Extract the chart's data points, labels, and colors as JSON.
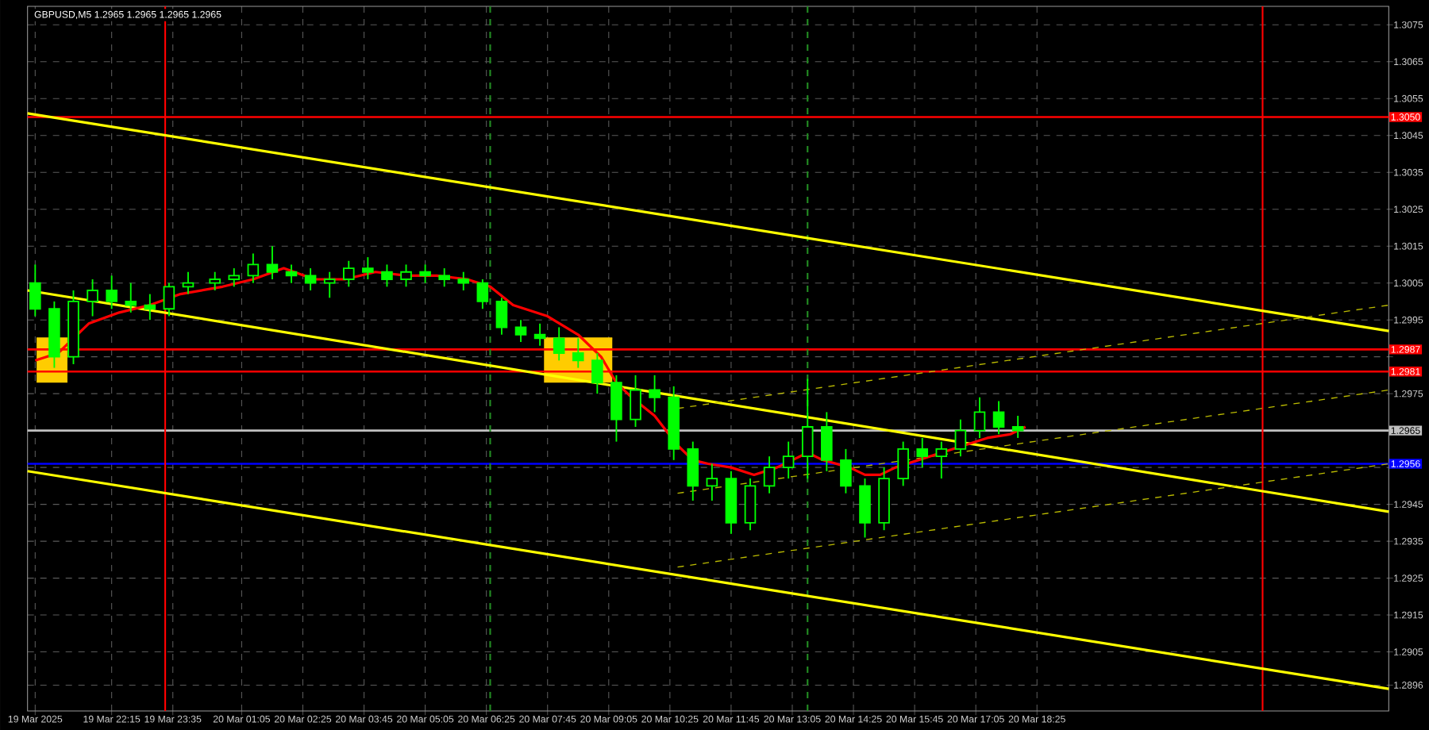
{
  "chart_data": {
    "type": "candlestick",
    "title": "GBPUSD,M5  1.2965 1.2965 1.2965 1.2965",
    "xlim": [
      "2025-03-19T20:25",
      "2025-03-21T02:05"
    ],
    "ylim": [
      1.2889,
      1.308
    ],
    "xticks": [
      {
        "value": "2025-03-19T20:35",
        "label": "19 Mar 2025"
      },
      {
        "value": "2025-03-19T22:15",
        "label": "19 Mar 22:15"
      },
      {
        "value": "2025-03-19T23:35",
        "label": "19 Mar 23:35"
      },
      {
        "value": "2025-03-20T01:05",
        "label": "20 Mar 01:05"
      },
      {
        "value": "2025-03-20T02:25",
        "label": "20 Mar 02:25"
      },
      {
        "value": "2025-03-20T03:45",
        "label": "20 Mar 03:45"
      },
      {
        "value": "2025-03-20T05:05",
        "label": "20 Mar 05:05"
      },
      {
        "value": "2025-03-20T06:25",
        "label": "20 Mar 06:25"
      },
      {
        "value": "2025-03-20T07:45",
        "label": "20 Mar 07:45"
      },
      {
        "value": "2025-03-20T09:05",
        "label": "20 Mar 09:05"
      },
      {
        "value": "2025-03-20T10:25",
        "label": "20 Mar 10:25"
      },
      {
        "value": "2025-03-20T11:45",
        "label": "20 Mar 11:45"
      },
      {
        "value": "2025-03-20T13:05",
        "label": "20 Mar 13:05"
      },
      {
        "value": "2025-03-20T14:25",
        "label": "20 Mar 14:25"
      },
      {
        "value": "2025-03-20T15:45",
        "label": "20 Mar 15:45"
      },
      {
        "value": "2025-03-20T17:05",
        "label": "20 Mar 17:05"
      },
      {
        "value": "2025-03-20T18:25",
        "label": "20 Mar 18:25"
      }
    ],
    "yticks": [
      1.2896,
      1.2905,
      1.2915,
      1.2925,
      1.2935,
      1.2945,
      {
        "value": 1.2955,
        "label": null
      },
      {
        "value": 1.2965,
        "label": null
      },
      1.2975,
      {
        "value": 1.2985,
        "label": null
      },
      1.2995,
      1.3005,
      1.3015,
      1.3025,
      1.3035,
      1.3045,
      1.3055,
      1.3065,
      1.3075
    ],
    "grid": true,
    "series": [
      {
        "type": "bar",
        "color": "#ffcc00",
        "x": [
          "2025-03-19T20:57",
          "2025-03-20T08:25"
        ],
        "base": [
          1.2978,
          1.2978
        ],
        "values": [
          0.0012,
          0.0012
        ],
        "xerrors": [
          0.014,
          0.031
        ]
      },
      {
        "type": "line",
        "color": "#ffff00",
        "x": [
          "2025-03-19T20:25",
          "2025-03-21T02:05"
        ],
        "values": [
          1.3051,
          1.2992
        ]
      },
      {
        "type": "line",
        "color": "#ffff00",
        "x": [
          "2025-03-19T20:25",
          "2025-03-21T02:05"
        ],
        "values": [
          1.3003,
          1.2943
        ]
      },
      {
        "type": "line",
        "color": "#ffff00",
        "x": [
          "2025-03-19T20:25",
          "2025-03-21T02:05"
        ],
        "values": [
          1.2954,
          1.2895
        ]
      },
      {
        "type": "line",
        "color": "#bbbb00",
        "line_style": "dashed",
        "x": [
          "2025-03-20T10:35",
          "2025-03-21T02:05"
        ],
        "values": [
          1.2971,
          1.2999
        ]
      },
      {
        "type": "line",
        "color": "#bbbb00",
        "line_style": "dashed",
        "x": [
          "2025-03-20T10:35",
          "2025-03-21T02:05"
        ],
        "values": [
          1.2948,
          1.2976
        ]
      },
      {
        "type": "line",
        "color": "#bbbb00",
        "line_style": "dashed",
        "x": [
          "2025-03-20T10:35",
          "2025-03-21T02:05"
        ],
        "values": [
          1.2928,
          1.2956
        ]
      },
      {
        "type": "line",
        "color": "#ff0000",
        "x": [
          "2025-03-19T20:35",
          "2025-03-19T21:05",
          "2025-03-19T21:45",
          "2025-03-19T22:25",
          "2025-03-19T23:05",
          "2025-03-19T23:45",
          "2025-03-20T00:40",
          "2025-03-20T01:20",
          "2025-03-20T02:00",
          "2025-03-20T02:40",
          "2025-03-20T03:20",
          "2025-03-20T04:00",
          "2025-03-20T04:40",
          "2025-03-20T05:20",
          "2025-03-20T06:00",
          "2025-03-20T06:30",
          "2025-03-20T07:00",
          "2025-03-20T07:45",
          "2025-03-20T08:25",
          "2025-03-20T08:55",
          "2025-03-20T09:15",
          "2025-03-20T09:35",
          "2025-03-20T10:05",
          "2025-03-20T10:35",
          "2025-03-20T10:55",
          "2025-03-20T11:15",
          "2025-03-20T11:45",
          "2025-03-20T12:15",
          "2025-03-20T12:45",
          "2025-03-20T13:05",
          "2025-03-20T13:25",
          "2025-03-20T13:45",
          "2025-03-20T14:20",
          "2025-03-20T14:40",
          "2025-03-20T15:00",
          "2025-03-20T15:20",
          "2025-03-20T15:50",
          "2025-03-20T16:20",
          "2025-03-20T16:50",
          "2025-03-20T17:20",
          "2025-03-20T17:50",
          "2025-03-20T18:10"
        ],
        "values": [
          1.2984,
          1.2986,
          1.2994,
          1.2997,
          1.2999,
          1.3002,
          1.3004,
          1.3006,
          1.3009,
          1.3006,
          1.3006,
          1.3008,
          1.3007,
          1.3007,
          1.3006,
          1.3004,
          1.2999,
          1.2996,
          1.2991,
          1.2985,
          1.2978,
          1.2974,
          1.2969,
          1.2961,
          1.2957,
          1.2956,
          1.2955,
          1.2953,
          1.2955,
          1.2957,
          1.2959,
          1.2957,
          1.2955,
          1.2953,
          1.2953,
          1.2955,
          1.2957,
          1.2959,
          1.2961,
          1.2963,
          1.2964,
          1.2966
        ]
      },
      {
        "color": "#00ff00",
        "x": [
          "2025-03-19T20:35",
          "2025-03-19T21:00",
          "2025-03-19T21:25",
          "2025-03-19T21:50",
          "2025-03-19T22:15",
          "2025-03-19T22:40",
          "2025-03-19T23:05",
          "2025-03-19T23:30",
          "2025-03-19T23:55",
          "2025-03-20T00:30",
          "2025-03-20T00:55",
          "2025-03-20T01:20",
          "2025-03-20T01:45",
          "2025-03-20T02:10",
          "2025-03-20T02:35",
          "2025-03-20T03:00",
          "2025-03-20T03:25",
          "2025-03-20T03:50",
          "2025-03-20T04:15",
          "2025-03-20T04:40",
          "2025-03-20T05:05",
          "2025-03-20T05:30",
          "2025-03-20T05:55",
          "2025-03-20T06:20",
          "2025-03-20T06:45",
          "2025-03-20T07:10",
          "2025-03-20T07:35",
          "2025-03-20T08:00",
          "2025-03-20T08:25",
          "2025-03-20T08:50",
          "2025-03-20T09:15",
          "2025-03-20T09:40",
          "2025-03-20T10:05",
          "2025-03-20T10:30",
          "2025-03-20T10:55",
          "2025-03-20T11:20",
          "2025-03-20T11:45",
          "2025-03-20T12:10",
          "2025-03-20T12:35",
          "2025-03-20T13:00",
          "2025-03-20T13:25",
          "2025-03-20T13:50",
          "2025-03-20T14:15",
          "2025-03-20T14:40",
          "2025-03-20T15:05",
          "2025-03-20T15:30",
          "2025-03-20T15:55",
          "2025-03-20T16:20",
          "2025-03-20T16:45",
          "2025-03-20T17:10",
          "2025-03-20T17:35",
          "2025-03-20T18:00"
        ],
        "ohlc": [
          [
            1.3005,
            1.301,
            1.2996,
            1.2998
          ],
          [
            1.2998,
            1.3,
            1.2982,
            1.2985
          ],
          [
            1.2985,
            1.3003,
            1.2983,
            1.3
          ],
          [
            1.3,
            1.3006,
            1.2996,
            1.3003
          ],
          [
            1.3003,
            1.3007,
            1.2998,
            1.3
          ],
          [
            1.3,
            1.3005,
            1.2997,
            1.2999
          ],
          [
            1.2999,
            1.3002,
            1.2995,
            1.2998
          ],
          [
            1.2998,
            1.3005,
            1.2996,
            1.3004
          ],
          [
            1.3004,
            1.3008,
            1.3002,
            1.3005
          ],
          [
            1.3005,
            1.3008,
            1.3003,
            1.3006
          ],
          [
            1.3006,
            1.3009,
            1.3004,
            1.3007
          ],
          [
            1.3007,
            1.3013,
            1.3005,
            1.301
          ],
          [
            1.301,
            1.3015,
            1.3006,
            1.3008
          ],
          [
            1.3008,
            1.301,
            1.3005,
            1.3007
          ],
          [
            1.3007,
            1.3009,
            1.3003,
            1.3005
          ],
          [
            1.3005,
            1.3008,
            1.3001,
            1.3006
          ],
          [
            1.3006,
            1.3011,
            1.3004,
            1.3009
          ],
          [
            1.3009,
            1.3012,
            1.3006,
            1.3008
          ],
          [
            1.3008,
            1.301,
            1.3004,
            1.3006
          ],
          [
            1.3006,
            1.301,
            1.3004,
            1.3008
          ],
          [
            1.3008,
            1.301,
            1.3005,
            1.3007
          ],
          [
            1.3007,
            1.3009,
            1.3004,
            1.3006
          ],
          [
            1.3006,
            1.3008,
            1.3003,
            1.3005
          ],
          [
            1.3005,
            1.3006,
            1.2998,
            1.3
          ],
          [
            1.3,
            1.3001,
            1.2991,
            1.2993
          ],
          [
            1.2993,
            1.2995,
            1.2989,
            1.2991
          ],
          [
            1.2991,
            1.2994,
            1.2988,
            1.299
          ],
          [
            1.299,
            1.2993,
            1.2984,
            1.2986
          ],
          [
            1.2986,
            1.299,
            1.2982,
            1.2984
          ],
          [
            1.2984,
            1.2986,
            1.2975,
            1.2978
          ],
          [
            1.2978,
            1.298,
            1.2962,
            1.2968
          ],
          [
            1.2968,
            1.298,
            1.2966,
            1.2976
          ],
          [
            1.2976,
            1.298,
            1.297,
            1.2974
          ],
          [
            1.2974,
            1.2977,
            1.2957,
            1.296
          ],
          [
            1.296,
            1.2962,
            1.2946,
            1.295
          ],
          [
            1.295,
            1.2956,
            1.2946,
            1.2952
          ],
          [
            1.2952,
            1.2954,
            1.2937,
            1.294
          ],
          [
            1.294,
            1.2952,
            1.2938,
            1.295
          ],
          [
            1.295,
            1.2958,
            1.2948,
            1.2955
          ],
          [
            1.2955,
            1.2962,
            1.2952,
            1.2958
          ],
          [
            1.2958,
            1.2979,
            1.2952,
            1.2966
          ],
          [
            1.2966,
            1.297,
            1.2954,
            1.2957
          ],
          [
            1.2957,
            1.296,
            1.2948,
            1.295
          ],
          [
            1.295,
            1.2952,
            1.2936,
            1.294
          ],
          [
            1.294,
            1.2955,
            1.2938,
            1.2952
          ],
          [
            1.2952,
            1.2962,
            1.295,
            1.296
          ],
          [
            1.296,
            1.2963,
            1.2955,
            1.2958
          ],
          [
            1.2958,
            1.2962,
            1.2952,
            1.296
          ],
          [
            1.296,
            1.2968,
            1.2958,
            1.2965
          ],
          [
            1.2965,
            1.2974,
            1.2963,
            1.297
          ],
          [
            1.297,
            1.2973,
            1.2964,
            1.2966
          ],
          [
            1.2966,
            1.2969,
            1.2963,
            1.2965
          ]
        ]
      }
    ],
    "ref_lines": [
      {
        "axis": "y",
        "value": 1.305,
        "label": "1.3050",
        "color": "#ff0000"
      },
      {
        "axis": "y",
        "value": 1.2987,
        "label": "1.2987",
        "color": "#ff0000"
      },
      {
        "axis": "y",
        "value": 1.2981,
        "label": "1.2981",
        "color": "#ff0000"
      },
      {
        "axis": "y",
        "value": 1.2965,
        "label": "1.2965",
        "color": "#c0c0c0"
      },
      {
        "axis": "y",
        "value": 1.2956,
        "label": "1.2956",
        "color": "#0000ff"
      },
      {
        "axis": "x",
        "value": "2025-03-19T23:25",
        "color": "#ff0000"
      },
      {
        "axis": "x",
        "value": "2025-03-20T06:30",
        "color": "#228b22",
        "line_style": "dashed"
      },
      {
        "axis": "x",
        "value": "2025-03-20T13:25",
        "color": "#228b22",
        "line_style": "dashed"
      },
      {
        "axis": "x",
        "value": "2025-03-20T23:20",
        "color": "#ff0000"
      }
    ]
  }
}
